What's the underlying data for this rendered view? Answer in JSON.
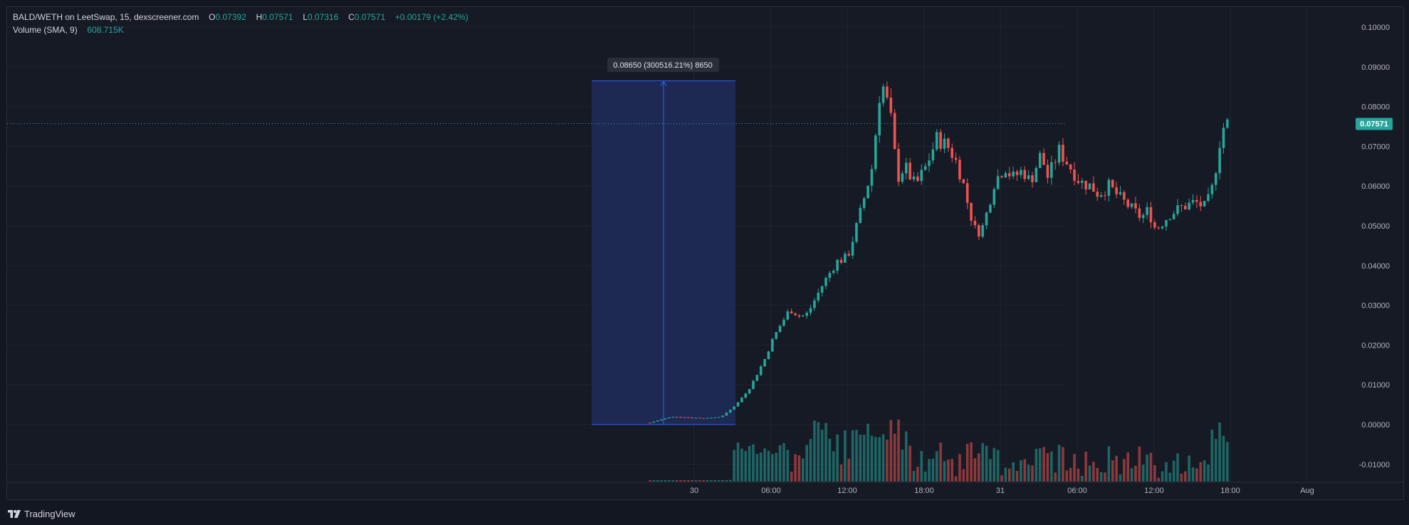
{
  "legend": {
    "symbol": "BALD/WETH on LeetSwap, 15, dexscreener.com",
    "open_label": "O",
    "open": "0.07392",
    "high_label": "H",
    "high": "0.07571",
    "low_label": "L",
    "low": "0.07316",
    "close_label": "C",
    "close": "0.07571",
    "change": "+0.00179 (+2.42%)",
    "volume_label": "Volume (SMA, 9)",
    "volume_value": "608.715K"
  },
  "footer": {
    "brand": "TradingView"
  },
  "colors": {
    "up": "#26a69a",
    "down": "#ef5350",
    "grid": "#1f2430",
    "measure_fill": "#1e2d5a",
    "measure_line": "#2962ff",
    "background": "#161a25"
  },
  "chart_data": {
    "type": "candlestick",
    "price_axis": {
      "ticks": [
        "0.10000",
        "0.09000",
        "0.08000",
        "0.07000",
        "0.06000",
        "0.05000",
        "0.04000",
        "0.03000",
        "0.02000",
        "0.01000",
        "0.00000",
        "-0.01000"
      ],
      "ylim": [
        -0.0125,
        0.101
      ]
    },
    "time_axis": {
      "ticks": [
        {
          "label": "30",
          "index": 0
        },
        {
          "label": "06:00",
          "index": 1
        },
        {
          "label": "12:00",
          "index": 2
        },
        {
          "label": "18:00",
          "index": 3
        },
        {
          "label": "31",
          "index": 4
        },
        {
          "label": "06:00",
          "index": 5
        },
        {
          "label": "12:00",
          "index": 6
        },
        {
          "label": "18:00",
          "index": 7
        },
        {
          "label": "Aug",
          "index": 8
        }
      ]
    },
    "current_price": "0.07571",
    "measure_tool": {
      "label": "0.08650 (300516.21%) 8650",
      "from_price": 0.0,
      "to_price": 0.0865
    },
    "price_path": [
      [
        0.0,
        0.0005
      ],
      [
        3.0,
        0.002
      ],
      [
        5.0,
        0.0018
      ],
      [
        8.0,
        0.0016
      ],
      [
        10.0,
        0.002
      ],
      [
        12.0,
        0.005
      ],
      [
        14.0,
        0.0095
      ],
      [
        16.0,
        0.0165
      ],
      [
        17.0,
        0.021
      ],
      [
        18.0,
        0.0245
      ],
      [
        19.5,
        0.029
      ],
      [
        21.0,
        0.027
      ],
      [
        22.0,
        0.028
      ],
      [
        24.0,
        0.035
      ],
      [
        26.0,
        0.041
      ],
      [
        27.5,
        0.042
      ],
      [
        29.0,
        0.051
      ],
      [
        31.0,
        0.065
      ],
      [
        32.0,
        0.083
      ],
      [
        32.5,
        0.085
      ],
      [
        33.5,
        0.078
      ],
      [
        34.5,
        0.062
      ],
      [
        35.5,
        0.065
      ],
      [
        37.0,
        0.06
      ],
      [
        38.5,
        0.065
      ],
      [
        40.0,
        0.072
      ],
      [
        41.5,
        0.07
      ],
      [
        42.5,
        0.067
      ],
      [
        43.5,
        0.062
      ],
      [
        44.5,
        0.054
      ],
      [
        45.5,
        0.048
      ],
      [
        46.5,
        0.05
      ],
      [
        48.0,
        0.061
      ],
      [
        49.5,
        0.065
      ],
      [
        50.5,
        0.062
      ],
      [
        52.0,
        0.064
      ],
      [
        53.0,
        0.061
      ],
      [
        54.5,
        0.068
      ],
      [
        55.5,
        0.062
      ],
      [
        57.0,
        0.069
      ],
      [
        58.5,
        0.065
      ],
      [
        60.0,
        0.061
      ],
      [
        61.5,
        0.06
      ],
      [
        62.5,
        0.058
      ],
      [
        64.0,
        0.06
      ],
      [
        65.5,
        0.057
      ],
      [
        67.0,
        0.0545
      ],
      [
        68.5,
        0.052
      ],
      [
        69.5,
        0.054
      ],
      [
        70.5,
        0.049
      ],
      [
        71.5,
        0.051
      ],
      [
        72.5,
        0.053
      ],
      [
        74.0,
        0.0545
      ],
      [
        76.0,
        0.056
      ],
      [
        77.5,
        0.0545
      ],
      [
        78.5,
        0.06
      ],
      [
        79.5,
        0.072
      ],
      [
        80.0,
        0.075
      ],
      [
        80.5,
        0.0757
      ]
    ]
  }
}
